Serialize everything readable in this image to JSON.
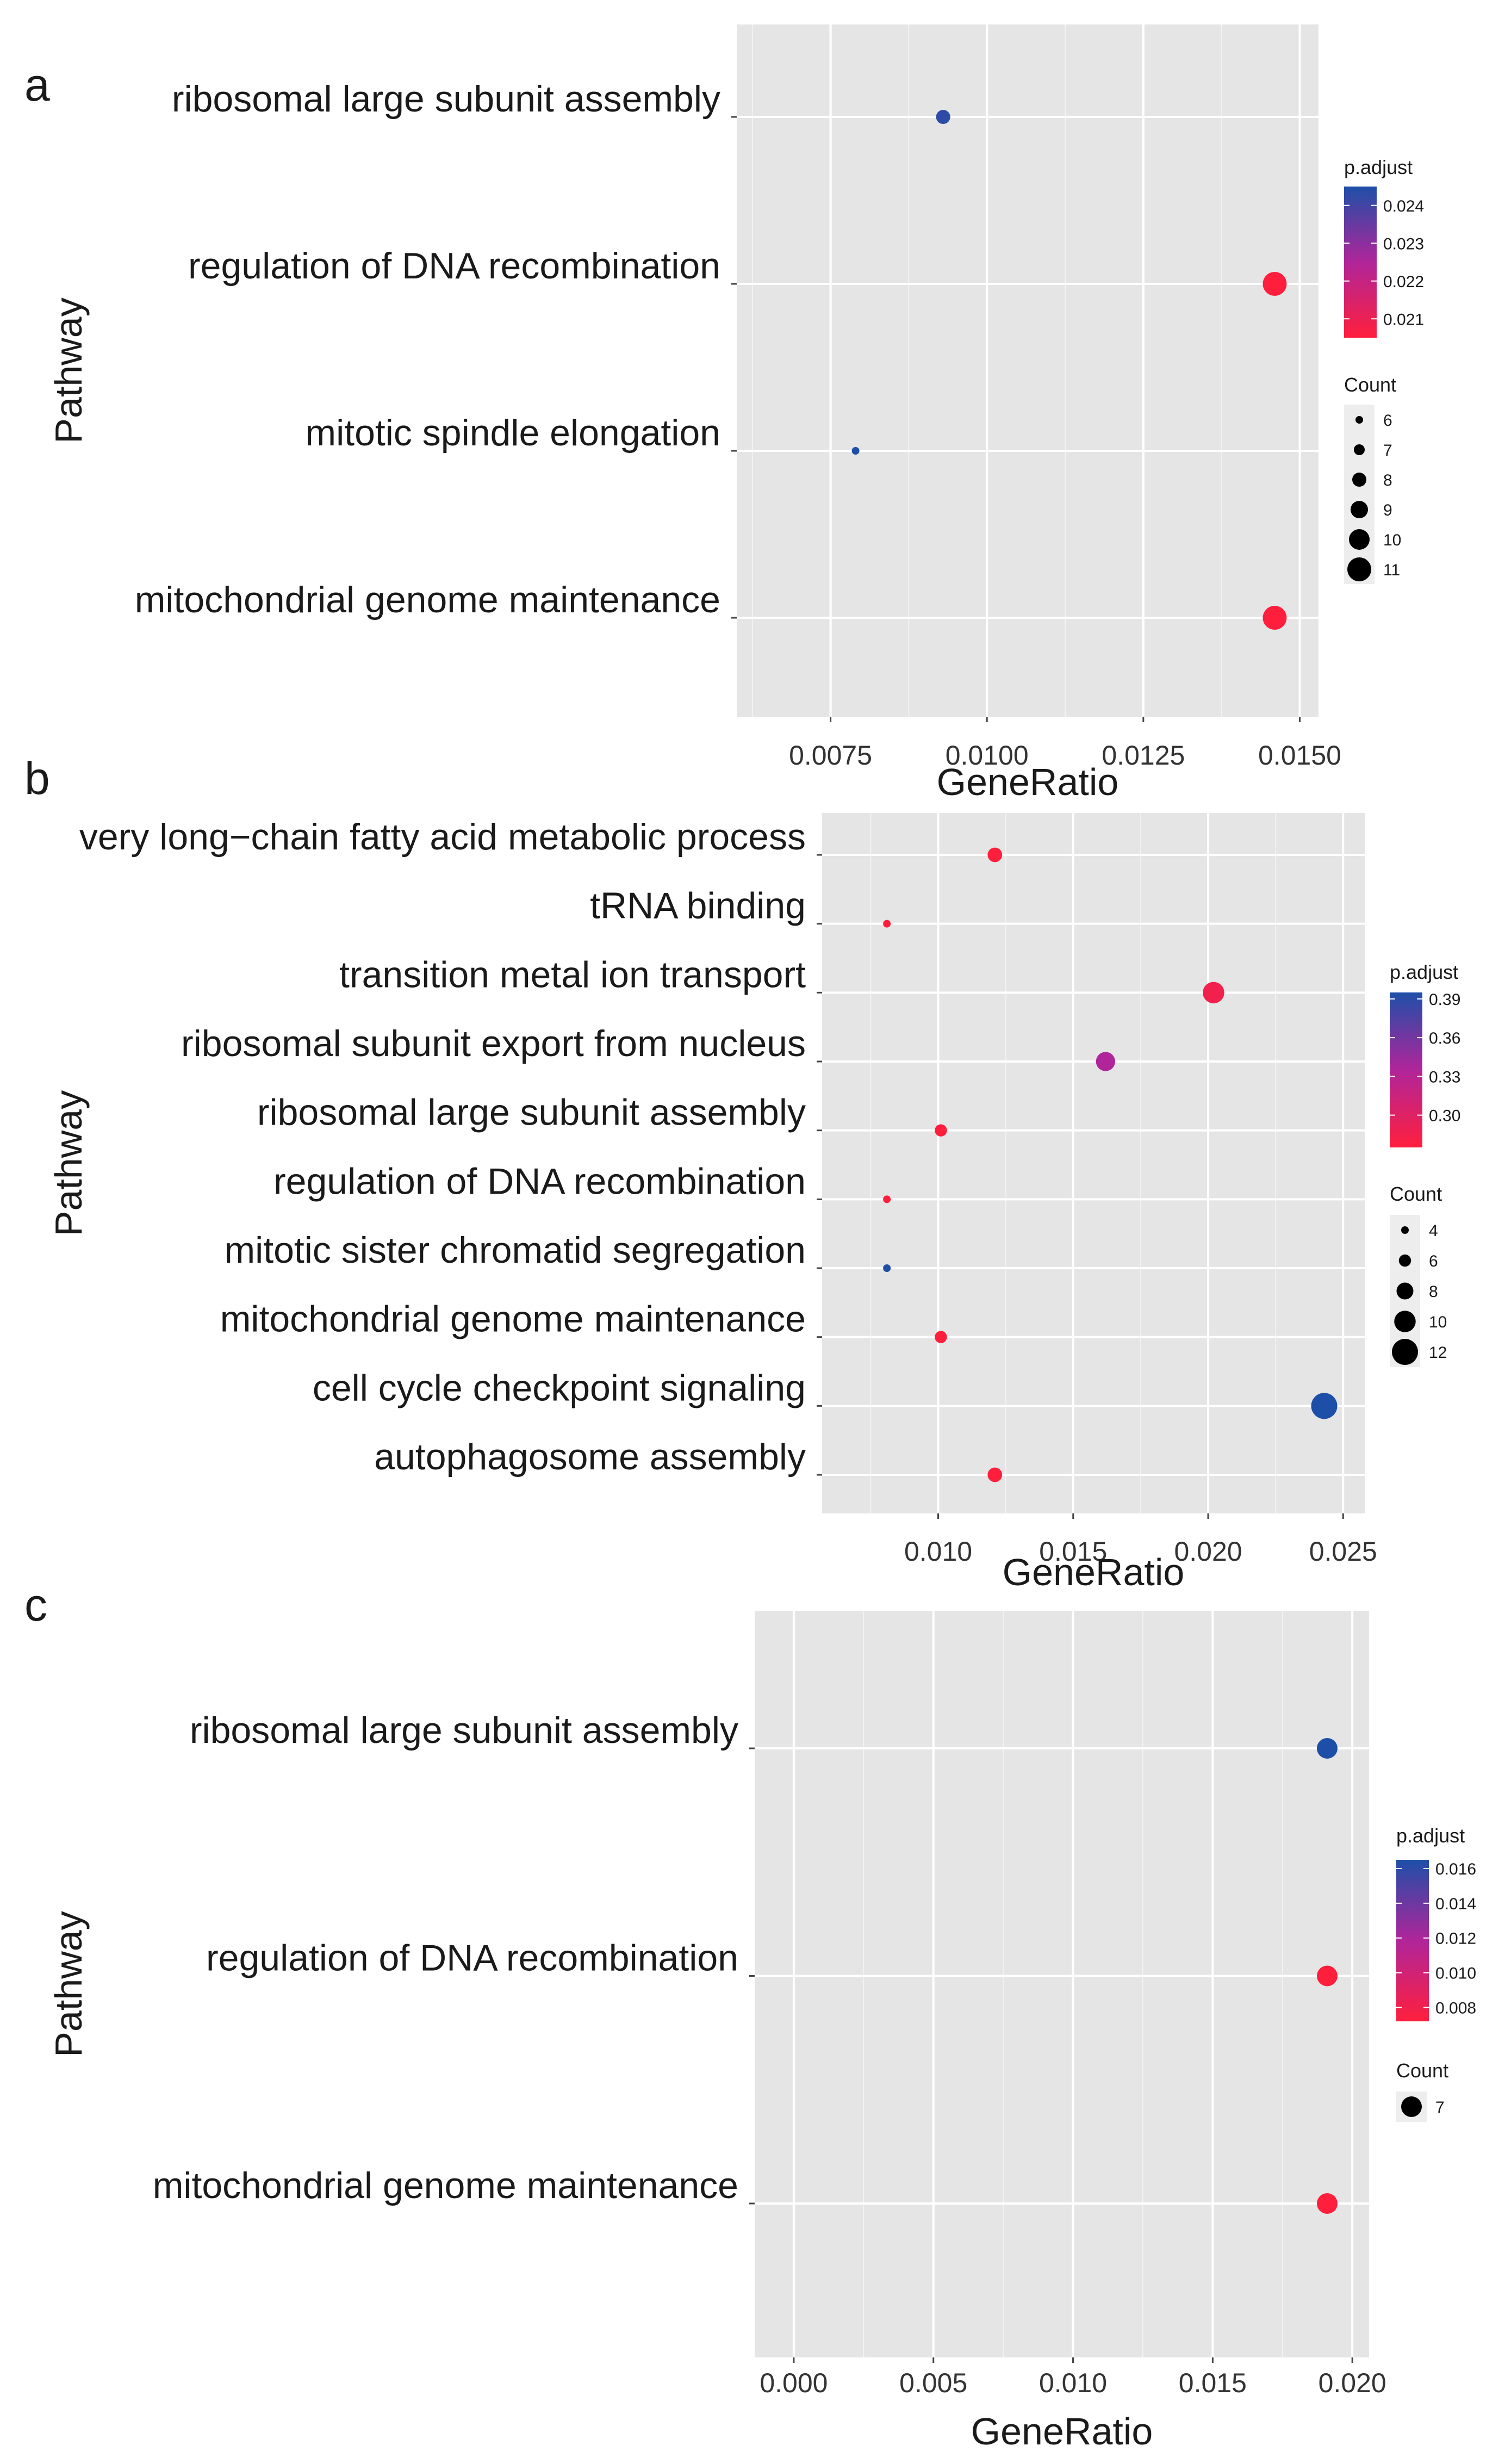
{
  "colors": {
    "panel_bg": "#e5e5e5",
    "grid_major": "#ffffff",
    "low_padjust": "#ff1f3d",
    "mid_padjust": "#b0259a",
    "high_padjust": "#1e4fa8",
    "point_black": "#000000"
  },
  "chart_data": [
    {
      "type": "scatter",
      "panel_label": "a",
      "xlabel": "GeneRatio",
      "ylabel": "Pathway",
      "xlim": [
        0.006,
        0.0153
      ],
      "xticks": [
        0.0075,
        0.01,
        0.0125,
        0.015
      ],
      "xtick_labels": [
        "0.0075",
        "0.0100",
        "0.0125",
        "0.0150"
      ],
      "grid": true,
      "categories": [
        "ribosomal large subunit assembly",
        "regulation of DNA recombination",
        "mitotic spindle elongation",
        "mitochondrial genome maintenance"
      ],
      "points": [
        {
          "pathway": "ribosomal large subunit assembly",
          "gene_ratio": 0.0093,
          "count": 8,
          "p_adjust": 0.0243
        },
        {
          "pathway": "regulation of DNA recombination",
          "gene_ratio": 0.0146,
          "count": 11,
          "p_adjust": 0.0205
        },
        {
          "pathway": "mitotic spindle elongation",
          "gene_ratio": 0.0079,
          "count": 6,
          "p_adjust": 0.0245
        },
        {
          "pathway": "mitochondrial genome maintenance",
          "gene_ratio": 0.0146,
          "count": 11,
          "p_adjust": 0.0205
        }
      ],
      "color_legend": {
        "title": "p.adjust",
        "range": [
          0.0205,
          0.0245
        ],
        "ticks": [
          0.024,
          0.023,
          0.022,
          0.021
        ],
        "tick_labels": [
          "0.024",
          "0.023",
          "0.022",
          "0.021"
        ]
      },
      "size_legend": {
        "title": "Count",
        "values": [
          6,
          7,
          8,
          9,
          10,
          11
        ],
        "labels": [
          "6",
          "7",
          "8",
          "9",
          "10",
          "11"
        ]
      }
    },
    {
      "type": "scatter",
      "panel_label": "b",
      "xlabel": "GeneRatio",
      "ylabel": "Pathway",
      "xlim": [
        0.0057,
        0.0258
      ],
      "xticks": [
        0.01,
        0.015,
        0.02,
        0.025
      ],
      "xtick_labels": [
        "0.010",
        "0.015",
        "0.020",
        "0.025"
      ],
      "grid": true,
      "categories": [
        "very long−chain fatty acid metabolic process",
        "tRNA binding",
        "transition metal ion transport",
        "ribosomal subunit export from nucleus",
        "ribosomal large subunit assembly",
        "regulation of DNA recombination",
        "mitotic sister chromatid segregation",
        "mitochondrial genome maintenance",
        "cell cycle checkpoint signaling",
        "autophagosome assembly"
      ],
      "points": [
        {
          "pathway": "very long−chain fatty acid metabolic process",
          "gene_ratio": 0.0121,
          "count": 7,
          "p_adjust": 0.275
        },
        {
          "pathway": "tRNA binding",
          "gene_ratio": 0.0081,
          "count": 4,
          "p_adjust": 0.275
        },
        {
          "pathway": "transition metal ion transport",
          "gene_ratio": 0.0202,
          "count": 10,
          "p_adjust": 0.285
        },
        {
          "pathway": "ribosomal subunit export from nucleus",
          "gene_ratio": 0.0162,
          "count": 9,
          "p_adjust": 0.335
        },
        {
          "pathway": "ribosomal large subunit assembly",
          "gene_ratio": 0.0101,
          "count": 6,
          "p_adjust": 0.275
        },
        {
          "pathway": "regulation of DNA recombination",
          "gene_ratio": 0.0081,
          "count": 4,
          "p_adjust": 0.275
        },
        {
          "pathway": "mitotic sister chromatid segregation",
          "gene_ratio": 0.0081,
          "count": 4,
          "p_adjust": 0.395
        },
        {
          "pathway": "mitochondrial genome maintenance",
          "gene_ratio": 0.0101,
          "count": 6,
          "p_adjust": 0.275
        },
        {
          "pathway": "cell cycle checkpoint signaling",
          "gene_ratio": 0.0243,
          "count": 12,
          "p_adjust": 0.395
        },
        {
          "pathway": "autophagosome assembly",
          "gene_ratio": 0.0121,
          "count": 7,
          "p_adjust": 0.275
        }
      ],
      "color_legend": {
        "title": "p.adjust",
        "range": [
          0.275,
          0.395
        ],
        "ticks": [
          0.39,
          0.36,
          0.33,
          0.3
        ],
        "tick_labels": [
          "0.39",
          "0.36",
          "0.33",
          "0.30"
        ]
      },
      "size_legend": {
        "title": "Count",
        "values": [
          4,
          6,
          8,
          10,
          12
        ],
        "labels": [
          "4",
          "6",
          "8",
          "10",
          "12"
        ]
      }
    },
    {
      "type": "scatter",
      "panel_label": "c",
      "xlabel": "GeneRatio",
      "ylabel": "Pathway",
      "xlim": [
        -0.0014,
        0.0206
      ],
      "xticks": [
        0.0,
        0.005,
        0.01,
        0.015,
        0.02
      ],
      "xtick_labels": [
        "0.000",
        "0.005",
        "0.010",
        "0.015",
        "0.020"
      ],
      "grid": true,
      "categories": [
        "ribosomal large subunit assembly",
        "regulation of DNA recombination",
        "mitochondrial genome maintenance"
      ],
      "points": [
        {
          "pathway": "ribosomal large subunit assembly",
          "gene_ratio": 0.0191,
          "count": 7,
          "p_adjust": 0.0165
        },
        {
          "pathway": "regulation of DNA recombination",
          "gene_ratio": 0.0191,
          "count": 7,
          "p_adjust": 0.0072
        },
        {
          "pathway": "mitochondrial genome maintenance",
          "gene_ratio": 0.0191,
          "count": 7,
          "p_adjust": 0.0072
        }
      ],
      "color_legend": {
        "title": "p.adjust",
        "range": [
          0.0072,
          0.0165
        ],
        "ticks": [
          0.016,
          0.014,
          0.012,
          0.01,
          0.008
        ],
        "tick_labels": [
          "0.016",
          "0.014",
          "0.012",
          "0.010",
          "0.008"
        ]
      },
      "size_legend": {
        "title": "Count",
        "values": [
          7
        ],
        "labels": [
          "7"
        ]
      }
    }
  ]
}
